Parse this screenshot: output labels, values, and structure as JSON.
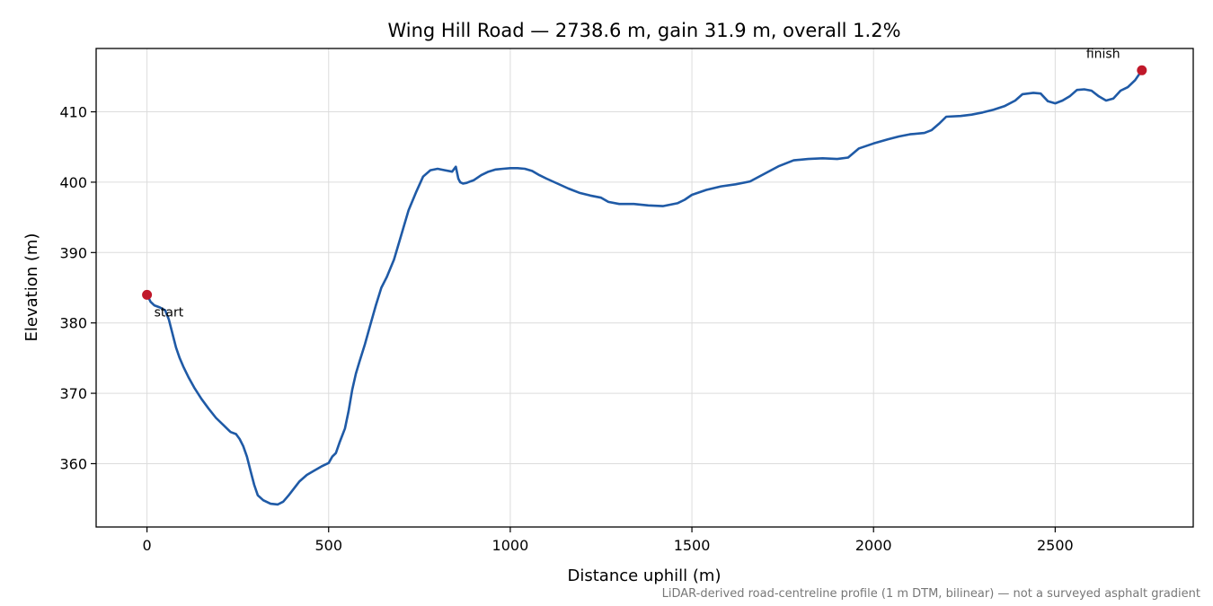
{
  "chart_data": {
    "type": "line",
    "title": "Wing Hill Road — 2738.6 m, gain 31.9 m, overall 1.2%",
    "xlabel": "Distance uphill (m)",
    "ylabel": "Elevation (m)",
    "xlim": [
      -140,
      2880
    ],
    "ylim": [
      351,
      419
    ],
    "xticks": [
      0,
      500,
      1000,
      1500,
      2000,
      2500
    ],
    "yticks": [
      360,
      370,
      380,
      390,
      400,
      410
    ],
    "grid": true,
    "footnote": "LiDAR-derived road-centreline profile (1 m DTM, bilinear) — not a surveyed asphalt gradient",
    "line_color": "#1f5aa6",
    "marker_color": "#c0182a",
    "series": [
      {
        "x": [
          0,
          10,
          20,
          35,
          50,
          60,
          70,
          80,
          90,
          100,
          115,
          130,
          150,
          170,
          190,
          210,
          230,
          245,
          255,
          265,
          275,
          285,
          295,
          305,
          320,
          340,
          360,
          375,
          390,
          405,
          420,
          440,
          460,
          480,
          500,
          510,
          520,
          530,
          545,
          555,
          565,
          575,
          585,
          600,
          615,
          630,
          645,
          660,
          680,
          700,
          720,
          740,
          760,
          780,
          800,
          820,
          840,
          850,
          857,
          862,
          870,
          880,
          890,
          900,
          920,
          940,
          960,
          980,
          1000,
          1020,
          1040,
          1060,
          1080,
          1100,
          1130,
          1160,
          1190,
          1220,
          1250,
          1270,
          1300,
          1340,
          1380,
          1420,
          1460,
          1480,
          1500,
          1540,
          1580,
          1620,
          1660,
          1700,
          1740,
          1780,
          1820,
          1860,
          1900,
          1930,
          1960,
          2000,
          2040,
          2070,
          2100,
          2140,
          2160,
          2180,
          2200,
          2240,
          2270,
          2300,
          2330,
          2360,
          2390,
          2410,
          2440,
          2460,
          2480,
          2500,
          2520,
          2540,
          2560,
          2580,
          2600,
          2620,
          2640,
          2660,
          2680,
          2700,
          2720,
          2738.6
        ],
        "y": [
          384.0,
          383.0,
          382.5,
          382.2,
          381.8,
          380.5,
          378.5,
          376.5,
          375.0,
          373.8,
          372.2,
          370.8,
          369.2,
          367.8,
          366.5,
          365.5,
          364.5,
          364.2,
          363.5,
          362.5,
          361.0,
          359.0,
          357.0,
          355.5,
          354.8,
          354.3,
          354.2,
          354.6,
          355.5,
          356.5,
          357.5,
          358.4,
          359.0,
          359.6,
          360.1,
          361.0,
          361.5,
          363.0,
          365.0,
          367.5,
          370.5,
          372.8,
          374.5,
          377.0,
          379.8,
          382.5,
          385.0,
          386.5,
          389.0,
          392.5,
          396.0,
          398.5,
          400.8,
          401.7,
          401.9,
          401.7,
          401.5,
          402.2,
          400.5,
          400.0,
          399.8,
          399.9,
          400.1,
          400.3,
          401.0,
          401.5,
          401.8,
          401.9,
          402.0,
          402.0,
          401.9,
          401.6,
          401.0,
          400.5,
          399.8,
          399.1,
          398.5,
          398.1,
          397.8,
          397.2,
          396.9,
          396.9,
          396.7,
          396.6,
          397.0,
          397.5,
          398.2,
          398.9,
          399.4,
          399.7,
          400.1,
          401.2,
          402.3,
          403.1,
          403.3,
          403.4,
          403.3,
          403.5,
          404.8,
          405.5,
          406.1,
          406.5,
          406.8,
          407.0,
          407.4,
          408.3,
          409.3,
          409.4,
          409.6,
          409.9,
          410.3,
          410.8,
          411.6,
          412.5,
          412.7,
          412.6,
          411.5,
          411.2,
          411.6,
          412.2,
          413.1,
          413.2,
          413.0,
          412.2,
          411.6,
          411.9,
          413.0,
          413.5,
          414.5,
          415.9
        ]
      }
    ],
    "annotations": [
      {
        "label": "start",
        "x": 0,
        "y": 384.0
      },
      {
        "label": "finish",
        "x": 2738.6,
        "y": 415.9
      }
    ]
  }
}
